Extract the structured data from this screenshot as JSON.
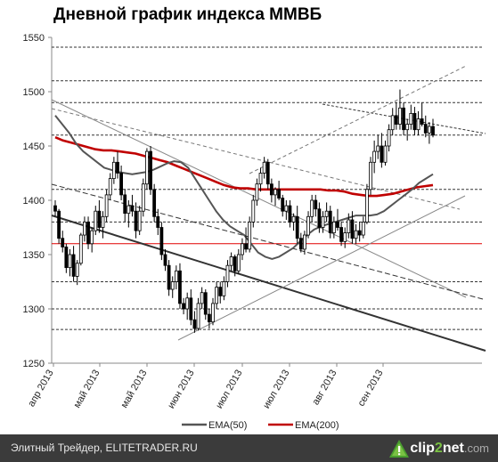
{
  "chart_data": {
    "type": "candlestick",
    "title": "Дневной график индекса ММВБ",
    "ylim": [
      1250,
      1550
    ],
    "y_ticks": [
      "1250",
      "1300",
      "1350",
      "1400",
      "1450",
      "1500",
      "1550"
    ],
    "x_tick_labels": [
      "апр 2013",
      "май 2013",
      "май 2013",
      "июн 2013",
      "июл 2013",
      "июл 2013",
      "авг 2013",
      "сен 2013"
    ],
    "legend": [
      {
        "name": "EMA(50)",
        "color": "#555555"
      },
      {
        "name": "EMA(200)",
        "color": "#c00000"
      }
    ],
    "horizontal_levels": [
      1541,
      1510,
      1490,
      1460,
      1410,
      1380,
      1360,
      1325,
      1300,
      1281
    ],
    "highlight_level": 1360,
    "candles": [
      [
        1395,
        1400,
        1385,
        1390
      ],
      [
        1390,
        1392,
        1360,
        1365
      ],
      [
        1365,
        1372,
        1352,
        1357
      ],
      [
        1357,
        1360,
        1333,
        1338
      ],
      [
        1338,
        1355,
        1330,
        1350
      ],
      [
        1350,
        1358,
        1325,
        1330
      ],
      [
        1330,
        1345,
        1322,
        1342
      ],
      [
        1342,
        1370,
        1340,
        1368
      ],
      [
        1368,
        1385,
        1362,
        1380
      ],
      [
        1380,
        1385,
        1355,
        1360
      ],
      [
        1360,
        1375,
        1352,
        1372
      ],
      [
        1372,
        1395,
        1368,
        1390
      ],
      [
        1390,
        1400,
        1370,
        1375
      ],
      [
        1375,
        1390,
        1365,
        1385
      ],
      [
        1385,
        1410,
        1380,
        1405
      ],
      [
        1405,
        1425,
        1400,
        1420
      ],
      [
        1420,
        1440,
        1415,
        1435
      ],
      [
        1435,
        1445,
        1420,
        1425
      ],
      [
        1425,
        1432,
        1400,
        1405
      ],
      [
        1405,
        1410,
        1380,
        1388
      ],
      [
        1388,
        1400,
        1375,
        1395
      ],
      [
        1395,
        1405,
        1385,
        1390
      ],
      [
        1390,
        1398,
        1365,
        1372
      ],
      [
        1372,
        1395,
        1368,
        1390
      ],
      [
        1390,
        1420,
        1385,
        1415
      ],
      [
        1415,
        1448,
        1410,
        1445
      ],
      [
        1445,
        1450,
        1405,
        1410
      ],
      [
        1410,
        1415,
        1380,
        1385
      ],
      [
        1385,
        1392,
        1368,
        1375
      ],
      [
        1375,
        1380,
        1345,
        1350
      ],
      [
        1350,
        1355,
        1335,
        1340
      ],
      [
        1340,
        1345,
        1312,
        1318
      ],
      [
        1318,
        1330,
        1310,
        1325
      ],
      [
        1325,
        1340,
        1318,
        1335
      ],
      [
        1335,
        1342,
        1300,
        1305
      ],
      [
        1305,
        1310,
        1295,
        1300
      ],
      [
        1300,
        1315,
        1290,
        1310
      ],
      [
        1310,
        1318,
        1285,
        1290
      ],
      [
        1290,
        1298,
        1278,
        1282
      ],
      [
        1282,
        1310,
        1280,
        1305
      ],
      [
        1305,
        1320,
        1300,
        1315
      ],
      [
        1315,
        1318,
        1290,
        1295
      ],
      [
        1295,
        1300,
        1282,
        1288
      ],
      [
        1288,
        1310,
        1285,
        1305
      ],
      [
        1305,
        1325,
        1300,
        1320
      ],
      [
        1320,
        1325,
        1305,
        1312
      ],
      [
        1312,
        1330,
        1308,
        1325
      ],
      [
        1325,
        1345,
        1320,
        1340
      ],
      [
        1340,
        1352,
        1335,
        1348
      ],
      [
        1348,
        1350,
        1330,
        1335
      ],
      [
        1335,
        1355,
        1332,
        1350
      ],
      [
        1350,
        1365,
        1345,
        1360
      ],
      [
        1360,
        1375,
        1352,
        1355
      ],
      [
        1355,
        1385,
        1352,
        1380
      ],
      [
        1380,
        1405,
        1375,
        1400
      ],
      [
        1400,
        1420,
        1395,
        1415
      ],
      [
        1415,
        1430,
        1408,
        1425
      ],
      [
        1425,
        1440,
        1420,
        1435
      ],
      [
        1435,
        1438,
        1410,
        1415
      ],
      [
        1415,
        1420,
        1398,
        1405
      ],
      [
        1405,
        1412,
        1395,
        1410
      ],
      [
        1410,
        1418,
        1400,
        1402
      ],
      [
        1402,
        1405,
        1385,
        1390
      ],
      [
        1390,
        1400,
        1382,
        1395
      ],
      [
        1395,
        1400,
        1375,
        1380
      ],
      [
        1380,
        1388,
        1372,
        1385
      ],
      [
        1385,
        1395,
        1360,
        1365
      ],
      [
        1365,
        1370,
        1352,
        1355
      ],
      [
        1355,
        1372,
        1350,
        1368
      ],
      [
        1368,
        1390,
        1365,
        1385
      ],
      [
        1385,
        1405,
        1380,
        1400
      ],
      [
        1400,
        1405,
        1385,
        1392
      ],
      [
        1392,
        1398,
        1370,
        1375
      ],
      [
        1375,
        1390,
        1370,
        1385
      ],
      [
        1385,
        1398,
        1380,
        1390
      ],
      [
        1390,
        1395,
        1365,
        1370
      ],
      [
        1370,
        1385,
        1365,
        1380
      ],
      [
        1380,
        1392,
        1372,
        1375
      ],
      [
        1375,
        1380,
        1358,
        1362
      ],
      [
        1362,
        1375,
        1356,
        1370
      ],
      [
        1370,
        1388,
        1365,
        1382
      ],
      [
        1382,
        1390,
        1360,
        1365
      ],
      [
        1365,
        1378,
        1360,
        1372
      ],
      [
        1372,
        1380,
        1362,
        1368
      ],
      [
        1368,
        1385,
        1365,
        1380
      ],
      [
        1380,
        1415,
        1378,
        1410
      ],
      [
        1410,
        1440,
        1405,
        1435
      ],
      [
        1435,
        1455,
        1425,
        1445
      ],
      [
        1445,
        1460,
        1438,
        1450
      ],
      [
        1450,
        1462,
        1430,
        1435
      ],
      [
        1435,
        1455,
        1432,
        1450
      ],
      [
        1450,
        1470,
        1445,
        1465
      ],
      [
        1465,
        1485,
        1460,
        1478
      ],
      [
        1478,
        1490,
        1465,
        1470
      ],
      [
        1470,
        1502,
        1465,
        1485
      ],
      [
        1485,
        1490,
        1460,
        1465
      ],
      [
        1465,
        1475,
        1455,
        1470
      ],
      [
        1470,
        1488,
        1465,
        1480
      ],
      [
        1480,
        1486,
        1460,
        1465
      ],
      [
        1465,
        1482,
        1460,
        1475
      ],
      [
        1475,
        1490,
        1468,
        1470
      ],
      [
        1470,
        1478,
        1458,
        1462
      ],
      [
        1462,
        1472,
        1452,
        1468
      ],
      [
        1468,
        1475,
        1458,
        1460
      ]
    ],
    "ema50": [
      1478,
      1470,
      1462,
      1452,
      1445,
      1440,
      1435,
      1430,
      1428,
      1426,
      1425,
      1424,
      1425,
      1426,
      1428,
      1431,
      1434,
      1436,
      1435,
      1430,
      1420,
      1410,
      1400,
      1390,
      1382,
      1376,
      1372,
      1368,
      1360,
      1352,
      1348,
      1346,
      1348,
      1352,
      1356,
      1362,
      1368,
      1373,
      1376,
      1378,
      1380,
      1382,
      1384,
      1386,
      1386,
      1386,
      1387,
      1390,
      1395,
      1400,
      1405,
      1410,
      1416,
      1420,
      1424
    ],
    "ema200": [
      1458,
      1455,
      1453,
      1451,
      1449,
      1447,
      1446,
      1446,
      1445,
      1444,
      1443,
      1441,
      1439,
      1437,
      1435,
      1432,
      1429,
      1426,
      1423,
      1420,
      1417,
      1414,
      1412,
      1411,
      1411,
      1410,
      1410,
      1410,
      1410,
      1410,
      1410,
      1410,
      1410,
      1410,
      1409,
      1409,
      1408,
      1406,
      1405,
      1404,
      1404,
      1405,
      1406,
      1408,
      1410,
      1412,
      1413,
      1414
    ]
  },
  "footer": {
    "text": "Элитный Трейдер, ELITETRADER.RU",
    "logo_left": "clip",
    "logo_two": "2",
    "logo_right": "net",
    "logo_suffix": ".com"
  }
}
